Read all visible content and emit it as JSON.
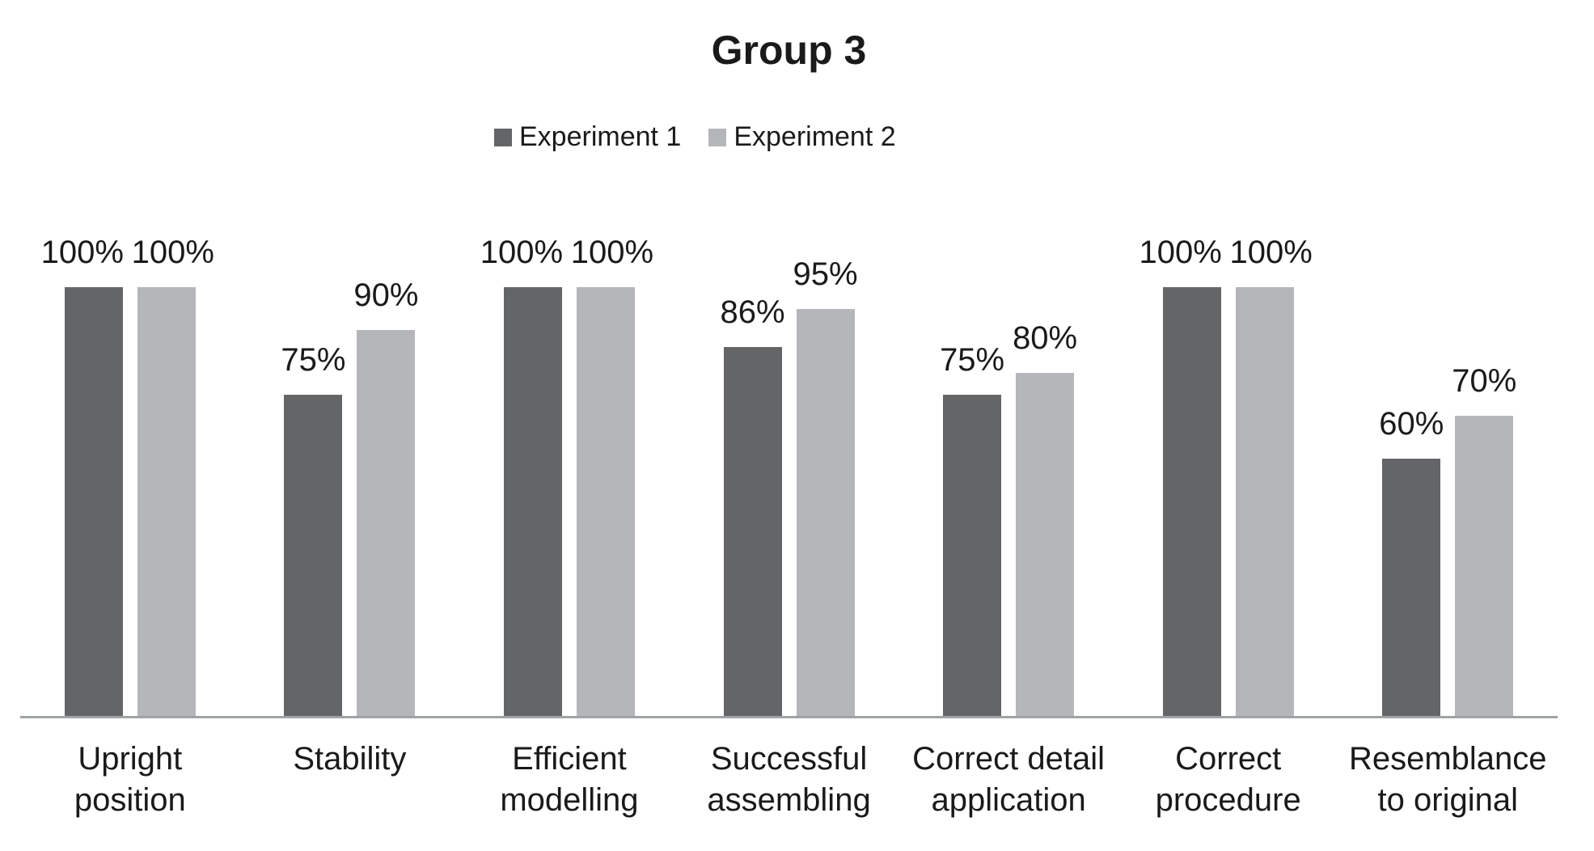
{
  "chart_data": {
    "type": "bar",
    "title": "Group 3",
    "categories": [
      "Upright position",
      "Stability",
      "Efficient modelling",
      "Successful assembling",
      "Correct detail application",
      "Correct procedure",
      "Resemblance to original"
    ],
    "category_lines": [
      [
        "Upright",
        "position"
      ],
      [
        "Stability"
      ],
      [
        "Efficient",
        "modelling"
      ],
      [
        "Successful",
        "assembling"
      ],
      [
        "Correct detail",
        "application"
      ],
      [
        "Correct",
        "procedure"
      ],
      [
        "Resemblance",
        "to original"
      ]
    ],
    "series": [
      {
        "name": "Experiment 1",
        "color": "#646567",
        "values": [
          100,
          75,
          100,
          86,
          75,
          100,
          60
        ]
      },
      {
        "name": "Experiment 2",
        "color": "#b4b6b9",
        "values": [
          100,
          90,
          100,
          95,
          80,
          100,
          70
        ]
      }
    ],
    "value_suffix": "%",
    "data_labels": [
      "100%",
      "75%",
      "100%",
      "86%",
      "75%",
      "100%",
      "60%",
      "100%",
      "90%",
      "100%",
      "95%",
      "80%",
      "100%",
      "70%"
    ],
    "xlabel": "",
    "ylabel": "",
    "ylim": [
      0,
      100
    ],
    "grid": false,
    "legend_position": "top",
    "axis_color": "#a0a3a5",
    "background_color": "#ffffff",
    "text_color": "#1a1a1a"
  }
}
